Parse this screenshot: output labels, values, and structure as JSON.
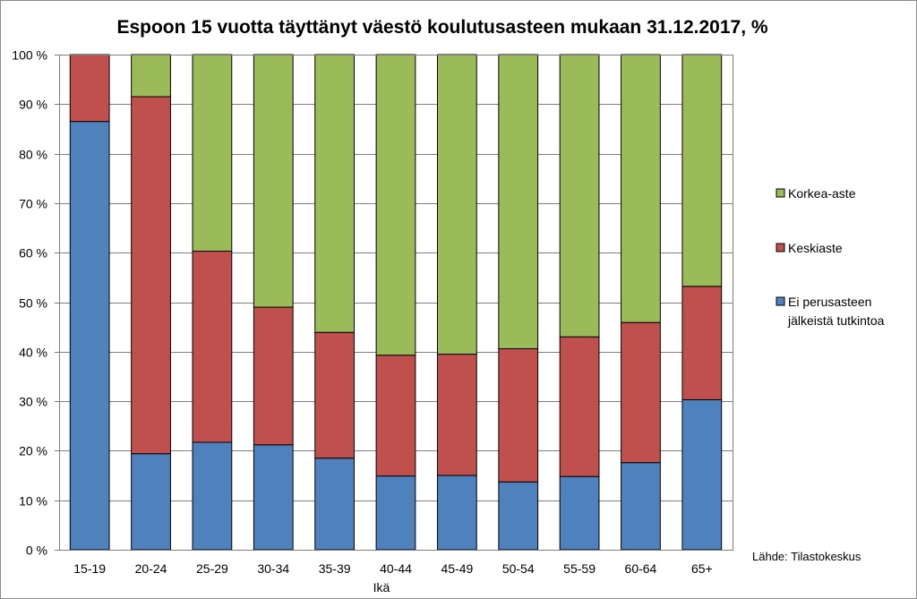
{
  "chart_data": {
    "type": "bar",
    "stacked": true,
    "title": "Espoon 15 vuotta täyttänyt väestö koulutusasteen mukaan 31.12.2017, %",
    "xlabel": "Ikä",
    "ylabel": "",
    "ylim": [
      0,
      100
    ],
    "ytick_values": [
      0,
      10,
      20,
      30,
      40,
      50,
      60,
      70,
      80,
      90,
      100
    ],
    "ytick_labels": [
      "0 %",
      "10 %",
      "20 %",
      "30 %",
      "40 %",
      "50 %",
      "60 %",
      "70 %",
      "80 %",
      "90 %",
      "100 %"
    ],
    "grid": true,
    "legend_position": "right",
    "categories": [
      "15-19",
      "20-24",
      "25-29",
      "30-34",
      "35-39",
      "40-44",
      "45-49",
      "50-54",
      "55-59",
      "60-64",
      "65+"
    ],
    "series": [
      {
        "name": "Ei perusasteen jälkeistä tutkintoa",
        "name_lines": [
          "Ei perusasteen",
          "jälkeistä tutkintoa"
        ],
        "color": "#4f81bd",
        "values": [
          86.5,
          19.4,
          21.7,
          21.2,
          18.5,
          14.9,
          15.0,
          13.7,
          14.8,
          17.6,
          30.3
        ]
      },
      {
        "name": "Keskiaste",
        "name_lines": [
          "Keskiaste"
        ],
        "color": "#c0504d",
        "values": [
          13.5,
          72.1,
          38.6,
          27.8,
          25.4,
          24.4,
          24.5,
          26.9,
          28.2,
          28.3,
          22.9
        ]
      },
      {
        "name": "Korkea-aste",
        "name_lines": [
          "Korkea-aste"
        ],
        "color": "#9bbb59",
        "values": [
          0.0,
          8.5,
          39.7,
          51.0,
          56.1,
          60.7,
          60.5,
          59.4,
          57.0,
          54.1,
          46.8
        ]
      }
    ],
    "legend_order": [
      2,
      1,
      0
    ],
    "source": "Lähde: Tilastokeskus"
  }
}
